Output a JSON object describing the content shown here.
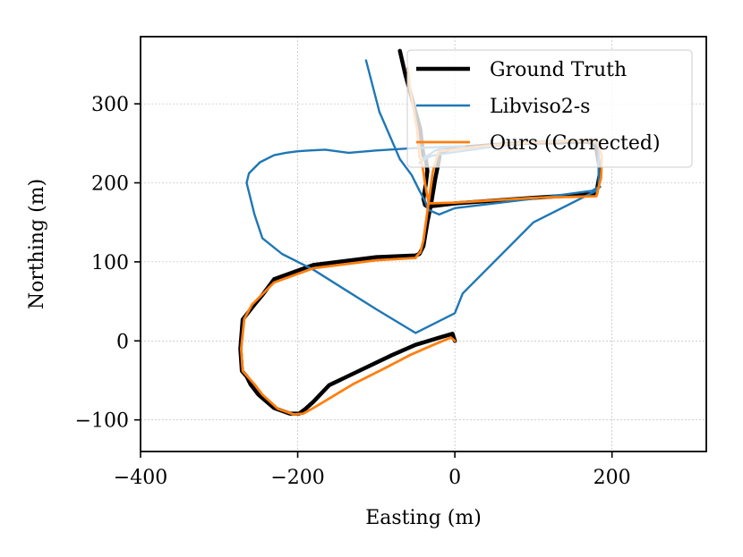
{
  "chart_data": {
    "type": "line",
    "title": "",
    "xlabel": "Easting (m)",
    "ylabel": "Northing (m)",
    "xlim": [
      -400,
      320
    ],
    "ylim": [
      -140,
      385
    ],
    "grid": true,
    "legend_position": "top-right",
    "xticks": [
      -400,
      -200,
      0,
      200
    ],
    "yticks": [
      -100,
      0,
      100,
      200,
      300
    ],
    "xtick_labels": [
      "−400",
      "−200",
      "0",
      "200"
    ],
    "ytick_labels": [
      "−100",
      "0",
      "100",
      "200",
      "300"
    ],
    "series": [
      {
        "name": "Ground Truth",
        "color": "#000000",
        "width": 4.5,
        "x": [
          -70,
          -63,
          -44,
          -40,
          -37,
          -35,
          -37,
          -40,
          -38,
          -35,
          -25,
          0,
          100,
          180,
          185,
          180,
          176,
          183,
          181,
          165,
          150,
          135,
          120,
          100,
          50,
          0,
          -19,
          -20,
          -25,
          -30,
          -35,
          -40,
          -45,
          -50,
          -100,
          -180,
          -230,
          -245,
          -255,
          -270,
          -273,
          -271,
          -265,
          -260,
          -250,
          -230,
          -210,
          -198,
          -190,
          -180,
          -160,
          -120,
          -80,
          -50,
          -20,
          -3,
          0
        ],
        "y": [
          367,
          337,
          268,
          234,
          232,
          215,
          198,
          180,
          172,
          170,
          171,
          174,
          181,
          186,
          215,
          243,
          250,
          250,
          250,
          252,
          252,
          251,
          251,
          251,
          248,
          244,
          239,
          230,
          205,
          175,
          150,
          120,
          110,
          108,
          106,
          96,
          78,
          58,
          46,
          27,
          -10,
          -38,
          -45,
          -55,
          -68,
          -85,
          -92,
          -92,
          -86,
          -77,
          -56,
          -37,
          -18,
          -5,
          4,
          9,
          0
        ]
      },
      {
        "name": "Libviso2-s",
        "color": "#1f77b4",
        "width": 2.4,
        "x": [
          -113,
          -96,
          -70,
          -55,
          -45,
          -37,
          -35,
          -32,
          -20,
          0,
          100,
          175,
          183,
          183,
          175,
          150,
          100,
          50,
          -20,
          -30,
          -42,
          -45,
          -40,
          -38,
          -32,
          -25,
          -10,
          0,
          5,
          12,
          10,
          0,
          -50,
          -100,
          -135,
          -150,
          -165,
          -185,
          -200,
          -215,
          -230,
          -248,
          -262,
          -265,
          -255,
          -245,
          -220,
          -180,
          -140,
          -100,
          -50,
          0,
          10,
          100,
          180,
          185
        ],
        "y": [
          355,
          290,
          230,
          210,
          190,
          175,
          168,
          165,
          160,
          168,
          180,
          190,
          195,
          248,
          253,
          254,
          252,
          246,
          236,
          234,
          228,
          225,
          230,
          233,
          236,
          241,
          245,
          246,
          246,
          246,
          246,
          246,
          244,
          241,
          238,
          240,
          242,
          241,
          240,
          238,
          235,
          226,
          212,
          200,
          160,
          130,
          110,
          90,
          65,
          40,
          10,
          35,
          60,
          150,
          190,
          195
        ]
      },
      {
        "name": "Ours (Corrected)",
        "color": "#ff7f0e",
        "width": 2.8,
        "x": [
          -60,
          -57,
          -48,
          -45,
          -43,
          -40,
          -38,
          -35,
          -33,
          0,
          100,
          180,
          186,
          187,
          183,
          183,
          180,
          160,
          140,
          130,
          100,
          50,
          -20,
          -22,
          -28,
          -32,
          -36,
          -40,
          -44,
          -48,
          -50,
          -100,
          -180,
          -230,
          -248,
          -258,
          -268,
          -272,
          -270,
          -263,
          -255,
          -245,
          -225,
          -205,
          -193,
          -182,
          -165,
          -130,
          -90,
          -55,
          -25,
          -5,
          0
        ],
        "y": [
          345,
          320,
          267,
          232,
          230,
          214,
          199,
          183,
          174,
          175,
          181,
          183,
          206,
          232,
          250,
          252,
          253,
          253,
          253,
          252,
          251,
          248,
          240,
          236,
          214,
          185,
          156,
          127,
          112,
          108,
          105,
          102,
          92,
          74,
          56,
          46,
          28,
          -10,
          -38,
          -46,
          -55,
          -68,
          -86,
          -93,
          -92,
          -86,
          -76,
          -55,
          -35,
          -17,
          -4,
          4,
          0
        ]
      }
    ],
    "legend": [
      "Ground Truth",
      "Libviso2-s",
      "Ours (Corrected)"
    ]
  }
}
